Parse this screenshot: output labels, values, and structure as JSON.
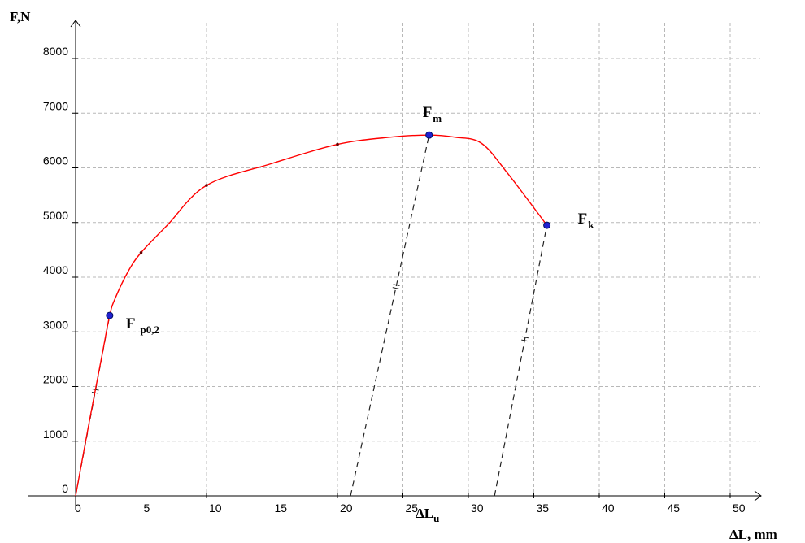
{
  "chart_data": {
    "type": "line",
    "title": "",
    "ylabel": "F,N",
    "xlabel": "ΔL, mm",
    "xlim": [
      0,
      52
    ],
    "ylim": [
      0,
      8500
    ],
    "grid": true,
    "x_ticks": [
      0,
      5,
      10,
      15,
      20,
      25,
      30,
      35,
      40,
      45,
      50
    ],
    "y_ticks": [
      0,
      1000,
      2000,
      3000,
      4000,
      5000,
      6000,
      7000,
      8000
    ],
    "series": [
      {
        "color": "#ff0000",
        "x": [
          0,
          1,
          2,
          2.6,
          3,
          4,
          5,
          7,
          10,
          15,
          20,
          24,
          27,
          29,
          31,
          33,
          36
        ],
        "y": [
          0,
          1300,
          2550,
          3300,
          3600,
          4100,
          4450,
          4950,
          5680,
          6080,
          6430,
          6560,
          6600,
          6560,
          6450,
          5900,
          4950
        ]
      }
    ],
    "key_points": [
      {
        "label": "F",
        "sub": "p0,2",
        "x": 2.6,
        "y": 3300,
        "color": "#2020d0"
      },
      {
        "label": "F",
        "sub": "m",
        "x": 27,
        "y": 6600,
        "color": "#2020d0"
      },
      {
        "label": "F",
        "sub": "k",
        "x": 36,
        "y": 4950,
        "color": "#2020d0"
      }
    ],
    "small_markers": [
      {
        "x": 5,
        "y": 4450
      },
      {
        "x": 10,
        "y": 5680
      },
      {
        "x": 20,
        "y": 6430
      }
    ],
    "unloading_lines": [
      {
        "from": [
          0,
          0
        ],
        "to": [
          2.6,
          3300
        ]
      },
      {
        "from": [
          21,
          0
        ],
        "to": [
          27,
          6600
        ]
      },
      {
        "from": [
          32,
          0
        ],
        "to": [
          36,
          4950
        ]
      }
    ],
    "annotations": [
      {
        "main": "ΔL",
        "sub": "u",
        "x": 31
      }
    ]
  }
}
